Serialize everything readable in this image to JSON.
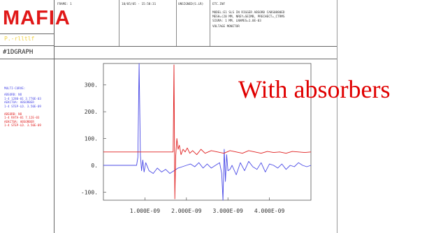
{
  "app": {
    "logo": "MAFIA",
    "caption": "P.-rlltlf",
    "mode": "#1DGRAPH"
  },
  "legend": {
    "title": "MULTI-CURVE:",
    "entries": [
      {
        "lines": [
          "ABSORB: NO",
          "1-4 1280-01  3.770E-03",
          "AEKCTOA: ABSORBER",
          "1-4 STEP-LD. 3.50E-09"
        ]
      },
      {
        "lines": [
          "ABSORB: NO",
          "1-4 RATA-01  7.12E-03",
          "AEKCTOA: ABSORBER",
          "1-4 STEP-LD. 3.50E-09"
        ]
      }
    ]
  },
  "header": {
    "cell1": "FRAME:  1",
    "cell2": "10/05/05 - 15:58:31",
    "cell3": "UNSIGNED(S.LR)",
    "cell4": "ETC.INF",
    "info_lines": [
      "MODEL:E1 SLS IN RIGGER ABSORB CABS0880ED",
      "MESH=(20 MM,  NREY=SEIMB, PRECHECT=_CTRMS",
      "SIGMA: 1 MM, LNAMES=1.0E-03",
      "VOLTAGE MONITOR"
    ]
  },
  "annotation": "With absorbers",
  "colors": {
    "blue": "#4a4ae6",
    "red": "#e02020",
    "accent": "#e01818"
  },
  "chart_data": {
    "type": "line",
    "title": "",
    "xlabel": "",
    "ylabel": "",
    "xlim": [
      0,
      5e-09
    ],
    "ylim": [
      -130,
      380
    ],
    "x_ticks": [
      1e-09,
      2e-09,
      3e-09,
      4e-09
    ],
    "x_tick_labels": [
      "1.000E-09",
      "2.000E-09",
      "3.000E-09",
      "4.000E-09"
    ],
    "y_ticks": [
      300,
      200,
      100,
      0,
      -100
    ],
    "y_tick_labels": [
      "300.",
      "200.",
      "100.",
      "0.",
      "-100."
    ],
    "grid": false,
    "series": [
      {
        "color": "#4a4ae6",
        "x": [
          0,
          2.5e-10,
          5e-10,
          7e-10,
          8e-10,
          8.3e-10,
          8.6e-10,
          8.9e-10,
          9.2e-10,
          9.5e-10,
          9.8e-10,
          1.02e-09,
          1.1e-09,
          1.2e-09,
          1.3e-09,
          1.4e-09,
          1.5e-09,
          1.6e-09,
          1.7e-09,
          1.8e-09,
          1.9e-09,
          2e-09,
          2.1e-09,
          2.2e-09,
          2.3e-09,
          2.4e-09,
          2.5e-09,
          2.6e-09,
          2.7e-09,
          2.8e-09,
          2.85e-09,
          2.88e-09,
          2.91e-09,
          2.94e-09,
          2.97e-09,
          3e-09,
          3.05e-09,
          3.1e-09,
          3.2e-09,
          3.3e-09,
          3.4e-09,
          3.5e-09,
          3.6e-09,
          3.7e-09,
          3.8e-09,
          3.9e-09,
          4e-09,
          4.1e-09,
          4.2e-09,
          4.3e-09,
          4.4e-09,
          4.5e-09,
          4.6e-09,
          4.7e-09,
          4.8e-09,
          4.9e-09,
          5e-09
        ],
        "y": [
          0,
          0,
          0,
          0,
          0,
          30,
          380,
          40,
          -20,
          20,
          -25,
          10,
          -20,
          -30,
          -10,
          -25,
          -15,
          -30,
          -20,
          -10,
          -5,
          0,
          5,
          -5,
          10,
          -10,
          5,
          -10,
          0,
          10,
          -30,
          -130,
          60,
          -60,
          40,
          -20,
          -15,
          0,
          -35,
          10,
          -20,
          15,
          -5,
          -15,
          10,
          -25,
          5,
          0,
          -10,
          5,
          -15,
          0,
          -5,
          10,
          0,
          -5,
          0
        ]
      },
      {
        "color": "#e02020",
        "x": [
          0,
          5e-10,
          1e-09,
          1.5e-09,
          1.68e-09,
          1.7e-09,
          1.72e-09,
          1.74e-09,
          1.77e-09,
          1.8e-09,
          1.83e-09,
          1.87e-09,
          1.92e-09,
          1.97e-09,
          2.02e-09,
          2.08e-09,
          2.15e-09,
          2.25e-09,
          2.35e-09,
          2.45e-09,
          2.6e-09,
          2.75e-09,
          2.9e-09,
          3.05e-09,
          3.2e-09,
          3.35e-09,
          3.5e-09,
          3.65e-09,
          3.8e-09,
          3.95e-09,
          4.1e-09,
          4.25e-09,
          4.4e-09,
          4.55e-09,
          4.7e-09,
          4.85e-09,
          5e-09
        ],
        "y": [
          50,
          50,
          50,
          50,
          50,
          375,
          -125,
          30,
          100,
          60,
          75,
          40,
          60,
          50,
          65,
          45,
          55,
          40,
          60,
          45,
          55,
          50,
          45,
          55,
          50,
          45,
          55,
          50,
          45,
          52,
          48,
          50,
          45,
          52,
          50,
          48,
          50
        ]
      }
    ]
  }
}
